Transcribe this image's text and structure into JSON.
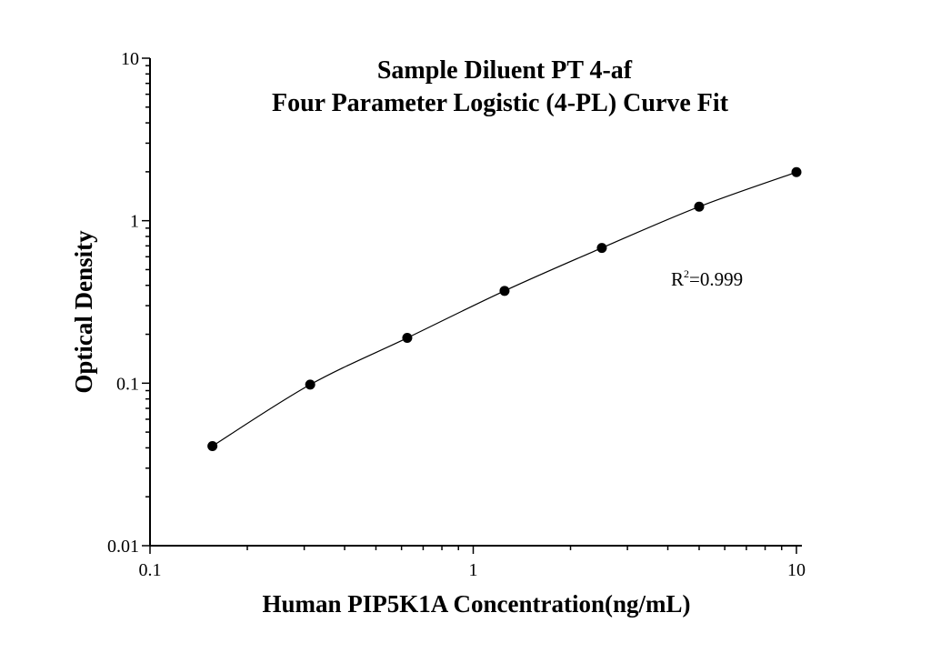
{
  "chart_data": {
    "type": "scatter",
    "title_lines": [
      "Sample Diluent PT 4-af",
      "Four Parameter Logistic (4-PL) Curve Fit"
    ],
    "xlabel": "Human PIP5K1A Concentration(ng/mL)",
    "ylabel": "Optical Density",
    "x_scale": "log",
    "y_scale": "log",
    "xlim": [
      0.1,
      10
    ],
    "ylim": [
      0.01,
      10
    ],
    "x_ticks": [
      {
        "value": 0.1,
        "label": "0.1"
      },
      {
        "value": 1,
        "label": "1"
      },
      {
        "value": 10,
        "label": "10"
      }
    ],
    "y_ticks": [
      {
        "value": 0.01,
        "label": "0.01"
      },
      {
        "value": 0.1,
        "label": "0.1"
      },
      {
        "value": 1,
        "label": "1"
      },
      {
        "value": 10,
        "label": "10"
      }
    ],
    "grid": false,
    "series": [
      {
        "x": [
          0.156,
          0.313,
          0.625,
          1.25,
          2.5,
          5,
          10
        ],
        "y": [
          0.041,
          0.098,
          0.19,
          0.37,
          0.68,
          1.22,
          1.99
        ]
      }
    ],
    "annotation": {
      "base": "R",
      "sup": "2",
      "rest": "=0.999"
    }
  }
}
